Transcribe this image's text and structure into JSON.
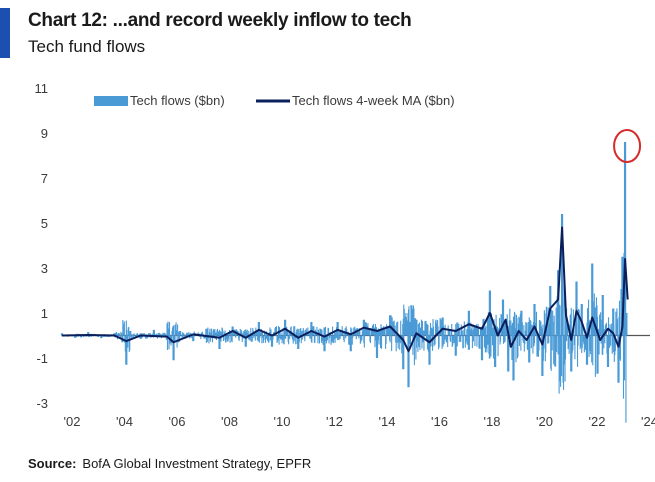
{
  "header": {
    "title": "Chart 12: ...and record weekly inflow to tech",
    "subtitle": "Tech fund flows"
  },
  "footer": {
    "source_label": "Source:",
    "source_text": "BofA Global Investment Strategy, EPFR"
  },
  "colors": {
    "weekly": "#4a9ad6",
    "ma": "#0b1f5c",
    "highlight_circle": "#d62b2b",
    "zero_line": "#555555"
  },
  "chart_data": {
    "type": "line",
    "title": "Tech fund flows",
    "xlabel": "",
    "ylabel": "",
    "xlim": [
      2002,
      2024.4
    ],
    "ylim": [
      -3,
      11
    ],
    "x_ticks": [
      2002,
      2004,
      2006,
      2008,
      2010,
      2012,
      2014,
      2016,
      2018,
      2020,
      2022,
      2024
    ],
    "x_tick_labels": [
      "'02",
      "'04",
      "'06",
      "'08",
      "'10",
      "'12",
      "'14",
      "'16",
      "'18",
      "'20",
      "'22",
      "'24"
    ],
    "y_ticks": [
      -3,
      -1,
      1,
      3,
      5,
      7,
      9,
      11
    ],
    "legend_position": "top",
    "series": [
      {
        "name": "Tech flows ($bn)",
        "style": "bars",
        "points": [
          [
            2002.0,
            0.1
          ],
          [
            2002.5,
            -0.1
          ],
          [
            2003.0,
            0.15
          ],
          [
            2003.5,
            -0.12
          ],
          [
            2004.0,
            0.1
          ],
          [
            2004.3,
            -0.3
          ],
          [
            2004.45,
            -1.3
          ],
          [
            2004.6,
            0.2
          ],
          [
            2005.0,
            -0.15
          ],
          [
            2005.5,
            0.25
          ],
          [
            2006.0,
            -0.2
          ],
          [
            2006.25,
            -1.1
          ],
          [
            2006.5,
            0.2
          ],
          [
            2007.0,
            -0.25
          ],
          [
            2007.5,
            0.3
          ],
          [
            2008.0,
            -0.6
          ],
          [
            2008.5,
            0.4
          ],
          [
            2009.0,
            -0.5
          ],
          [
            2009.5,
            0.6
          ],
          [
            2010.0,
            -0.5
          ],
          [
            2010.5,
            0.7
          ],
          [
            2011.0,
            -0.6
          ],
          [
            2011.5,
            0.6
          ],
          [
            2012.0,
            -0.7
          ],
          [
            2012.5,
            0.6
          ],
          [
            2013.0,
            -0.7
          ],
          [
            2013.5,
            0.7
          ],
          [
            2014.0,
            -1.0
          ],
          [
            2014.5,
            0.9
          ],
          [
            2015.0,
            -1.5
          ],
          [
            2015.2,
            -2.3
          ],
          [
            2015.5,
            0.7
          ],
          [
            2016.0,
            -1.3
          ],
          [
            2016.5,
            0.8
          ],
          [
            2017.0,
            -0.9
          ],
          [
            2017.5,
            1.1
          ],
          [
            2018.0,
            -1.1
          ],
          [
            2018.3,
            2.0
          ],
          [
            2018.5,
            -1.4
          ],
          [
            2018.8,
            1.6
          ],
          [
            2019.0,
            -1.6
          ],
          [
            2019.2,
            -2.0
          ],
          [
            2019.5,
            1.1
          ],
          [
            2019.8,
            -1.2
          ],
          [
            2020.0,
            1.4
          ],
          [
            2020.3,
            -1.8
          ],
          [
            2020.6,
            2.2
          ],
          [
            2020.9,
            2.9
          ],
          [
            2021.05,
            5.4
          ],
          [
            2021.2,
            1.2
          ],
          [
            2021.4,
            -1.6
          ],
          [
            2021.6,
            2.4
          ],
          [
            2021.8,
            1.4
          ],
          [
            2022.0,
            -1.3
          ],
          [
            2022.2,
            3.2
          ],
          [
            2022.4,
            -1.7
          ],
          [
            2022.6,
            1.8
          ],
          [
            2022.8,
            -1.4
          ],
          [
            2023.0,
            1.2
          ],
          [
            2023.2,
            -2.1
          ],
          [
            2023.35,
            3.5
          ],
          [
            2023.45,
            8.6
          ],
          [
            2023.5,
            1.0
          ]
        ]
      },
      {
        "name": "Tech flows 4-week MA ($bn)",
        "style": "line",
        "points": [
          [
            2002.0,
            0.0
          ],
          [
            2003.0,
            0.02
          ],
          [
            2004.0,
            0.0
          ],
          [
            2004.45,
            -0.25
          ],
          [
            2005.0,
            0.0
          ],
          [
            2006.0,
            -0.05
          ],
          [
            2006.25,
            -0.3
          ],
          [
            2007.0,
            0.05
          ],
          [
            2008.0,
            -0.1
          ],
          [
            2008.5,
            0.2
          ],
          [
            2009.0,
            -0.1
          ],
          [
            2009.5,
            0.25
          ],
          [
            2010.0,
            0.0
          ],
          [
            2010.5,
            0.3
          ],
          [
            2011.0,
            -0.1
          ],
          [
            2011.5,
            0.2
          ],
          [
            2012.0,
            -0.05
          ],
          [
            2012.5,
            0.25
          ],
          [
            2013.0,
            0.05
          ],
          [
            2013.5,
            0.35
          ],
          [
            2014.0,
            0.2
          ],
          [
            2014.5,
            0.4
          ],
          [
            2015.0,
            -0.2
          ],
          [
            2015.2,
            -0.7
          ],
          [
            2015.5,
            0.1
          ],
          [
            2016.0,
            -0.3
          ],
          [
            2016.5,
            0.3
          ],
          [
            2017.0,
            0.2
          ],
          [
            2017.5,
            0.5
          ],
          [
            2018.0,
            0.3
          ],
          [
            2018.3,
            1.0
          ],
          [
            2018.6,
            0.0
          ],
          [
            2018.9,
            0.7
          ],
          [
            2019.1,
            -0.5
          ],
          [
            2019.4,
            0.2
          ],
          [
            2019.7,
            -0.2
          ],
          [
            2020.0,
            0.4
          ],
          [
            2020.3,
            -0.4
          ],
          [
            2020.6,
            1.2
          ],
          [
            2020.9,
            1.6
          ],
          [
            2021.05,
            4.8
          ],
          [
            2021.2,
            0.9
          ],
          [
            2021.4,
            -0.2
          ],
          [
            2021.6,
            1.1
          ],
          [
            2021.8,
            0.6
          ],
          [
            2022.0,
            -0.1
          ],
          [
            2022.2,
            0.8
          ],
          [
            2022.5,
            -0.2
          ],
          [
            2022.8,
            0.3
          ],
          [
            2023.0,
            0.1
          ],
          [
            2023.2,
            -0.5
          ],
          [
            2023.35,
            0.4
          ],
          [
            2023.45,
            3.4
          ],
          [
            2023.55,
            1.6
          ]
        ]
      }
    ],
    "annotation": {
      "type": "circle",
      "x": 2023.45,
      "y": 8.6,
      "note": "record weekly inflow"
    }
  }
}
